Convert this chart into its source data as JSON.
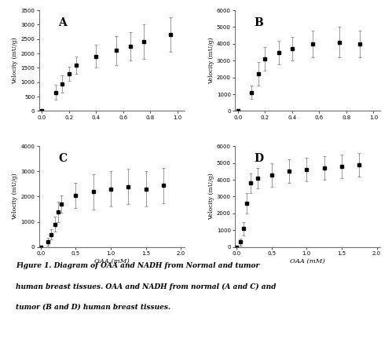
{
  "panels": {
    "A": {
      "label": "A",
      "x": [
        0.0,
        0.1,
        0.15,
        0.2,
        0.25,
        0.4,
        0.55,
        0.65,
        0.75,
        0.95
      ],
      "y": [
        0,
        650,
        950,
        1300,
        1600,
        1900,
        2100,
        2250,
        2400,
        2650
      ],
      "yerr": [
        30,
        250,
        300,
        250,
        300,
        400,
        500,
        500,
        600,
        600
      ],
      "xlim": [
        -0.02,
        1.05
      ],
      "ylim": [
        0,
        3500
      ],
      "yticks": [
        0,
        500,
        1000,
        1500,
        2000,
        2500,
        3000,
        3500
      ],
      "xticks": [
        0.0,
        0.2,
        0.4,
        0.6,
        0.8,
        1.0
      ],
      "ylabel": "Velocity (mU/g)",
      "xlabel": ""
    },
    "B": {
      "label": "B",
      "x": [
        0.0,
        0.1,
        0.15,
        0.2,
        0.3,
        0.4,
        0.55,
        0.75,
        0.9
      ],
      "y": [
        0,
        1100,
        2200,
        3100,
        3500,
        3700,
        4000,
        4100,
        4000
      ],
      "yerr": [
        30,
        400,
        700,
        700,
        700,
        700,
        800,
        900,
        800
      ],
      "xlim": [
        -0.02,
        1.05
      ],
      "ylim": [
        0,
        6000
      ],
      "yticks": [
        0,
        1000,
        2000,
        3000,
        4000,
        5000,
        6000
      ],
      "xticks": [
        0.0,
        0.2,
        0.4,
        0.6,
        0.8,
        1.0
      ],
      "ylabel": "Velocity (mU/g)",
      "xlabel": ""
    },
    "C": {
      "label": "C",
      "x": [
        0.0,
        0.1,
        0.15,
        0.2,
        0.25,
        0.3,
        0.5,
        0.75,
        1.0,
        1.25,
        1.5,
        1.75
      ],
      "y": [
        0,
        200,
        500,
        900,
        1400,
        1700,
        2050,
        2200,
        2300,
        2400,
        2300,
        2450
      ],
      "yerr": [
        30,
        150,
        200,
        300,
        400,
        350,
        500,
        700,
        700,
        700,
        700,
        700
      ],
      "xlim": [
        -0.02,
        2.05
      ],
      "ylim": [
        0,
        4000
      ],
      "yticks": [
        0,
        1000,
        2000,
        3000,
        4000
      ],
      "xticks": [
        0.0,
        0.5,
        1.0,
        1.5,
        2.0
      ],
      "ylabel": "Velocity (mU/g)",
      "xlabel": "OAA (mM)"
    },
    "D": {
      "label": "D",
      "x": [
        0.0,
        0.05,
        0.1,
        0.15,
        0.2,
        0.3,
        0.5,
        0.75,
        1.0,
        1.25,
        1.5,
        1.75
      ],
      "y": [
        0,
        300,
        1100,
        2600,
        3800,
        4100,
        4300,
        4500,
        4600,
        4700,
        4800,
        4900
      ],
      "yerr": [
        30,
        200,
        400,
        600,
        600,
        600,
        700,
        700,
        700,
        700,
        700,
        700
      ],
      "xlim": [
        -0.02,
        2.05
      ],
      "ylim": [
        0,
        6000
      ],
      "yticks": [
        0,
        1000,
        2000,
        3000,
        4000,
        5000,
        6000
      ],
      "xticks": [
        0.0,
        0.5,
        1.0,
        1.5,
        2.0
      ],
      "ylabel": "Velocity (mU/g)",
      "xlabel": "OAA (mM)"
    }
  },
  "caption_line1": "Figure 1. Diagram of OAA and NADH from Normal and tumor",
  "caption_line2": "human breast tissues. OAA and NADH from normal (A and C) and",
  "caption_line3": "tumor (B and D) human breast tissues.",
  "background_color": "#ffffff",
  "line_color": "#aaaaaa",
  "marker_color": "#000000",
  "text_color": "#000000"
}
